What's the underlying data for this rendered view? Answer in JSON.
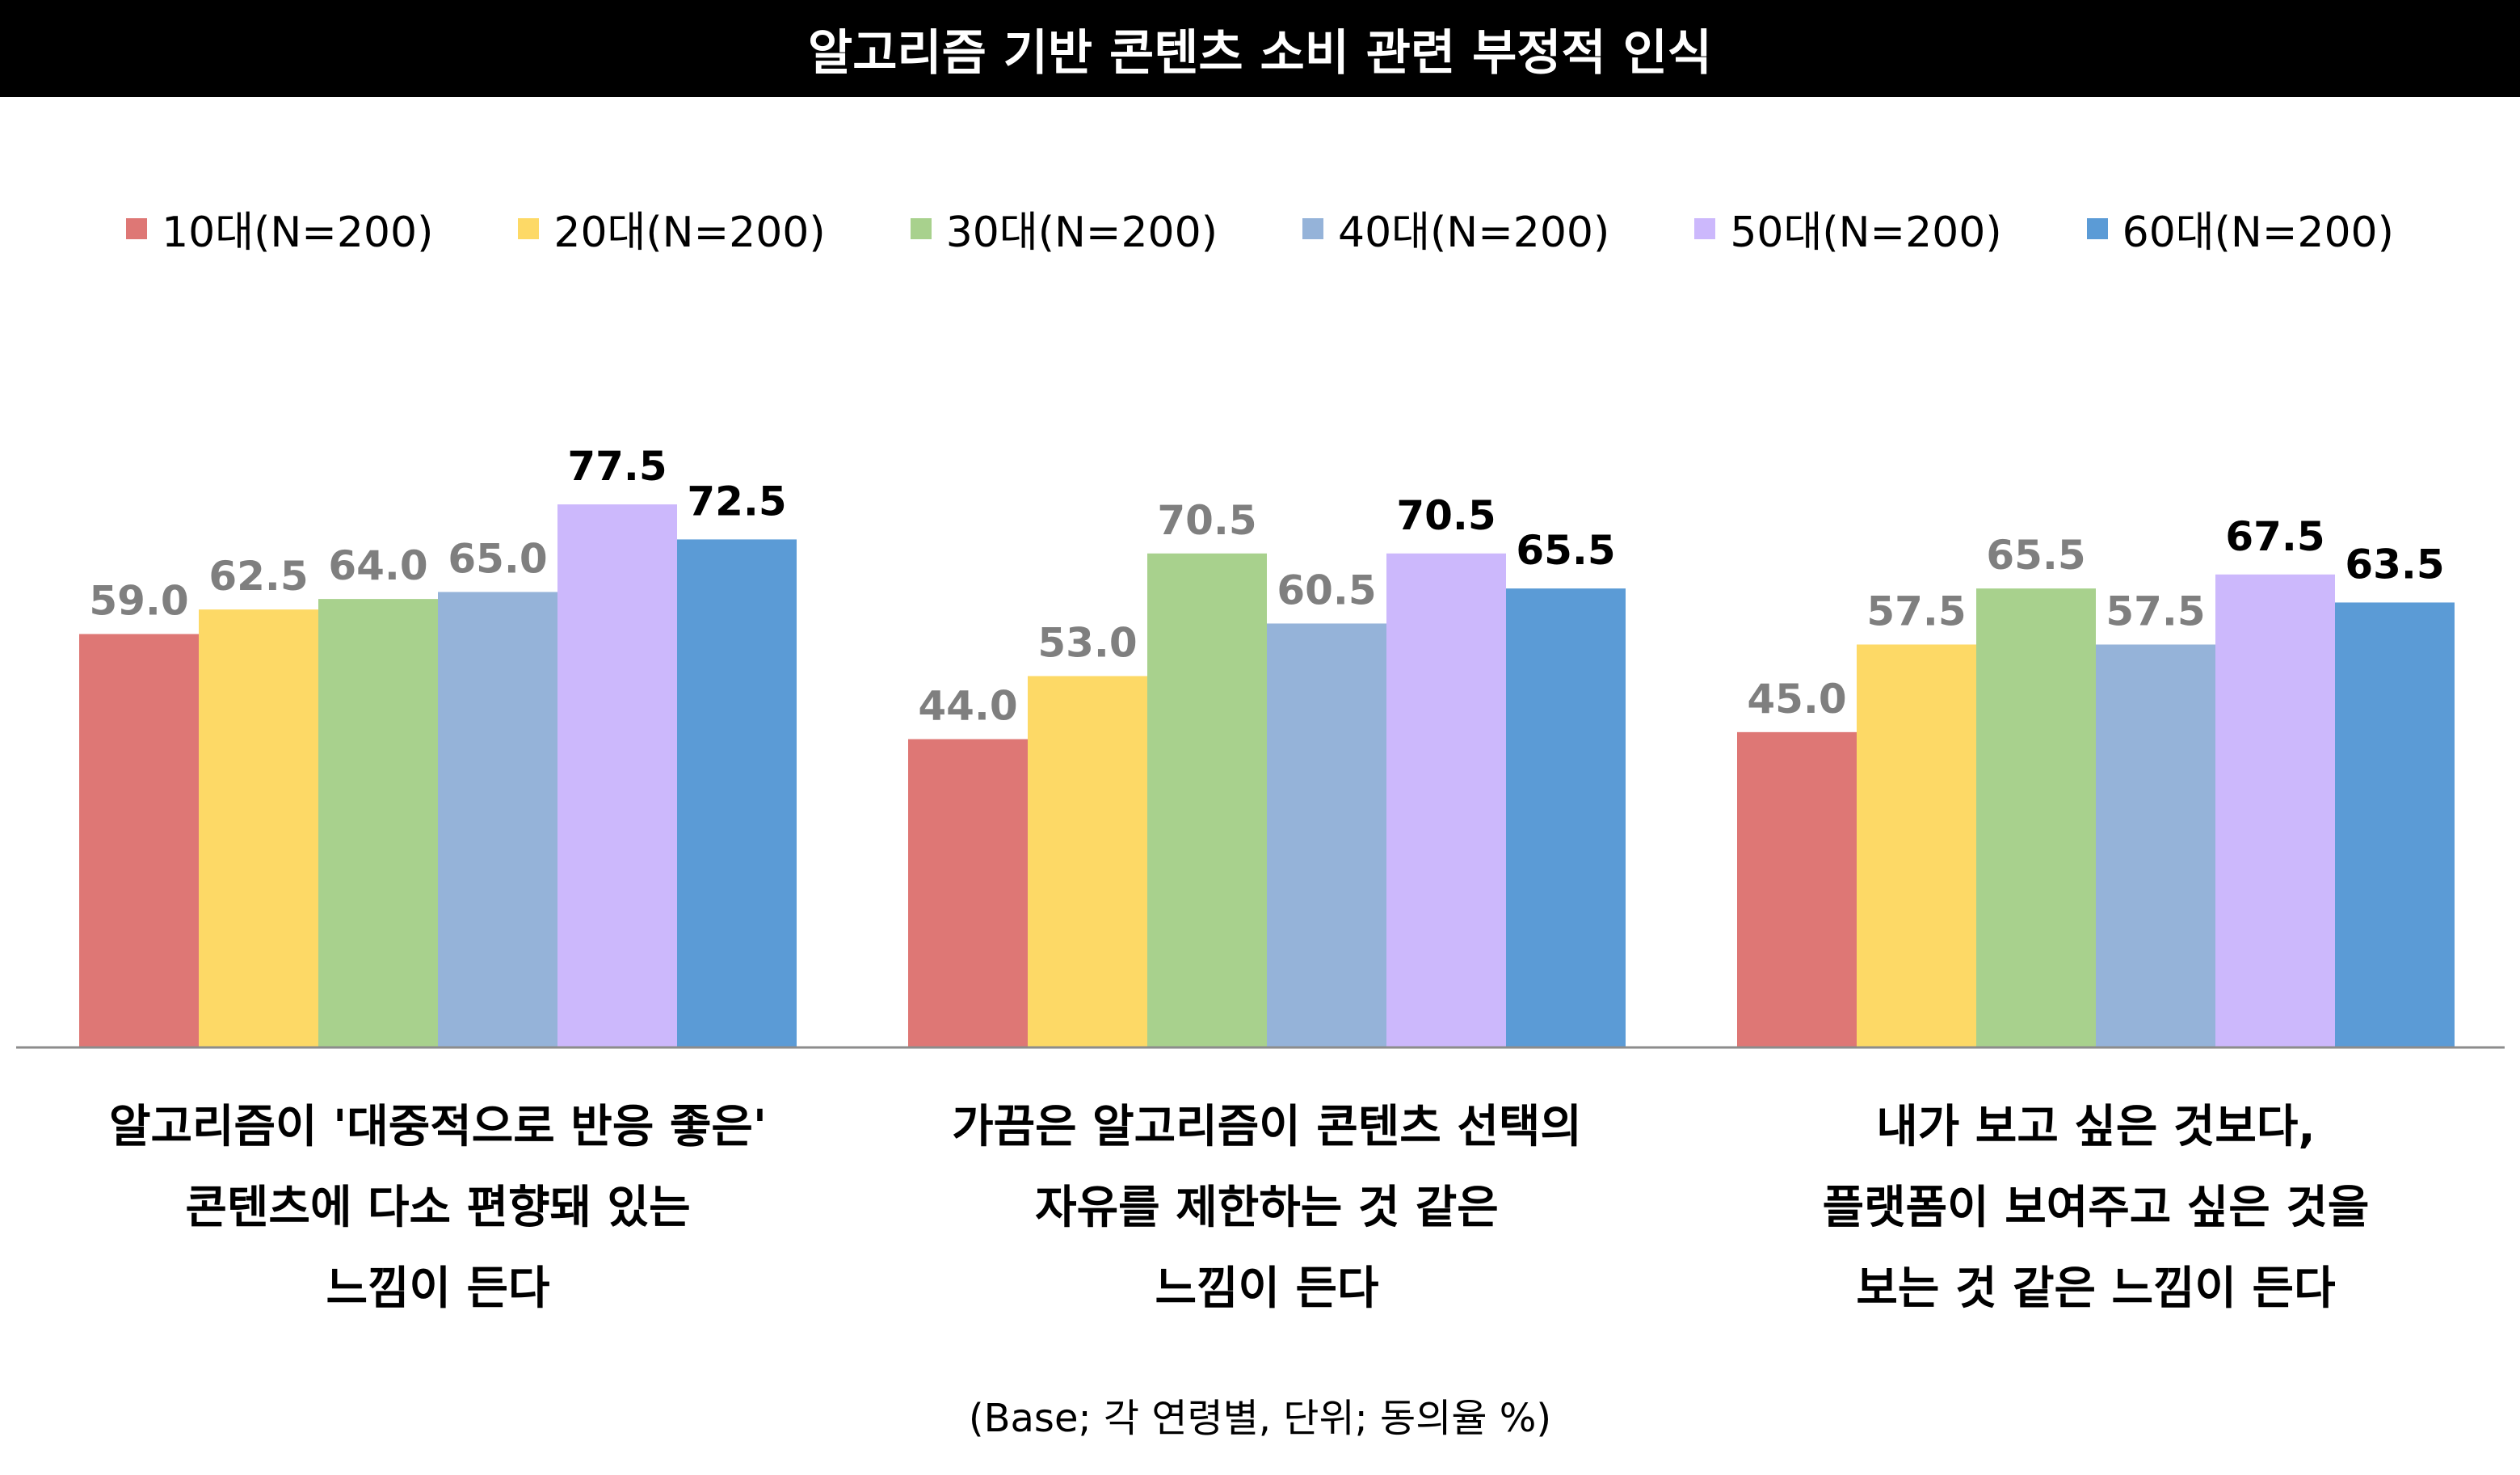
{
  "chart_data": {
    "type": "bar",
    "title": "알고리즘 기반 콘텐츠 소비 관련 부정적 인식",
    "categories": [
      "알고리즘이 '대중적으로 반응 좋은'\n콘텐츠에 다소 편향돼 있는\n느낌이 든다",
      "가끔은 알고리즘이 콘텐츠 선택의\n자유를 제한하는 것 같은\n느낌이 든다",
      "내가 보고 싶은 것보다,\n플랫폼이 보여주고 싶은 것을\n보는 것 같은 느낌이 든다"
    ],
    "series": [
      {
        "name": "10대(N=200)",
        "color": "#DE7775",
        "values": [
          59.0,
          44.0,
          45.0
        ]
      },
      {
        "name": "20대(N=200)",
        "color": "#FDD966",
        "values": [
          62.5,
          53.0,
          57.5
        ]
      },
      {
        "name": "30대(N=200)",
        "color": "#A8D18D",
        "values": [
          64.0,
          70.5,
          65.5
        ]
      },
      {
        "name": "40대(N=200)",
        "color": "#95B3D9",
        "values": [
          65.0,
          60.5,
          57.5
        ]
      },
      {
        "name": "50대(N=200)",
        "color": "#CCB8FC",
        "values": [
          77.5,
          70.5,
          67.5
        ]
      },
      {
        "name": "60대(N=200)",
        "color": "#5B9BD6",
        "values": [
          72.5,
          65.5,
          63.5
        ]
      }
    ],
    "highlighted_series": [
      "50대(N=200)",
      "60대(N=200)"
    ],
    "ylim": [
      0,
      100
    ],
    "xlabel": "",
    "ylabel": "",
    "grid": false,
    "legend": "top",
    "footnote": "(Base; 각 연령별, 단위; 동의율 %)"
  }
}
